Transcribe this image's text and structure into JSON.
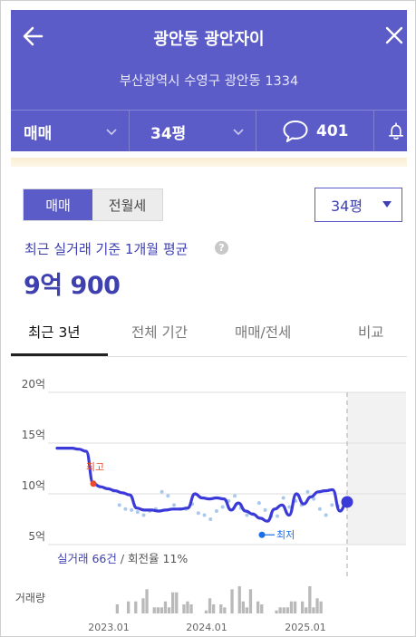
{
  "header": {
    "title": "광안동 광안자이",
    "address": "부산광역시 수영구 광안동 1334",
    "filters": {
      "deal_type": "매매",
      "size": "34평",
      "comment_count": "401"
    }
  },
  "toggle": {
    "selected": "매매",
    "other": "전월세"
  },
  "size_select": {
    "value": "34평"
  },
  "summary": {
    "label": "최근 실거래 기준 1개월 평균",
    "help_icon": "?",
    "price": "9억 900"
  },
  "tabs": [
    "최근 3년",
    "전체 기간",
    "매매/전세",
    "비교"
  ],
  "chart_data": {
    "type": "line",
    "yticks": [
      "20억",
      "15억",
      "10억",
      "5억"
    ],
    "ylim": [
      5,
      20
    ],
    "x_ticks": [
      "2023.01",
      "2024.01",
      "2025.01"
    ],
    "series": [
      {
        "values": [
          14.5,
          14.5,
          14.5,
          14.4,
          14.2,
          11.0,
          10.7,
          10.5,
          10.3,
          10.1,
          9.9,
          8.6,
          8.4,
          8.4,
          8.3,
          8.4,
          8.5,
          8.5,
          8.6,
          10.0,
          9.6,
          9.5,
          9.6,
          9.5,
          8.4,
          9.1,
          8.3,
          8.0,
          7.6,
          7.3,
          8.5,
          8.9,
          7.9,
          10.0,
          9.0,
          9.7,
          10.2,
          10.3,
          10.4,
          8.3,
          9.2
        ]
      }
    ],
    "scatter_y": [
      10.3,
      8.9,
      8.5,
      8.4,
      8.2,
      7.9,
      8.3,
      8.5,
      10.2,
      9.8,
      8.9,
      8.5,
      8.5,
      9.0,
      8.1,
      7.9,
      7.5,
      8.3,
      8.7,
      9.3,
      9.8,
      8.6,
      7.9,
      8.0,
      9.1,
      8.4,
      7.8,
      7.8,
      9.6,
      8.7,
      9.3,
      8.9,
      10.2,
      9.5,
      8.5,
      7.9,
      8.9,
      8.8
    ],
    "annotations": {
      "high": "최고",
      "low": "최저"
    },
    "footer": {
      "deal_count": "실거래 66건",
      "turnover": " / 회전율 11%"
    },
    "volume_label": "거래량",
    "volume": [
      0,
      0,
      0,
      0,
      0,
      0,
      0,
      0,
      3,
      0,
      0,
      4,
      0,
      4,
      0,
      5,
      8,
      0,
      2,
      2,
      2,
      4,
      2,
      7,
      7,
      0,
      3,
      4,
      3,
      0,
      0,
      0,
      1,
      5,
      3,
      0,
      3,
      2,
      0,
      8,
      0,
      9,
      4,
      2,
      8,
      0,
      4,
      3,
      0,
      0,
      0,
      1,
      2,
      2,
      2,
      4,
      4,
      0,
      4,
      2,
      9,
      2,
      5,
      4,
      0,
      0,
      0,
      0,
      0
    ]
  },
  "colors": {
    "primary": "#5b5cc7",
    "line": "#3b3ad8",
    "high_marker": "#e94b2a",
    "low_marker": "#1a6ee8",
    "bar": "#b9b9b9"
  }
}
